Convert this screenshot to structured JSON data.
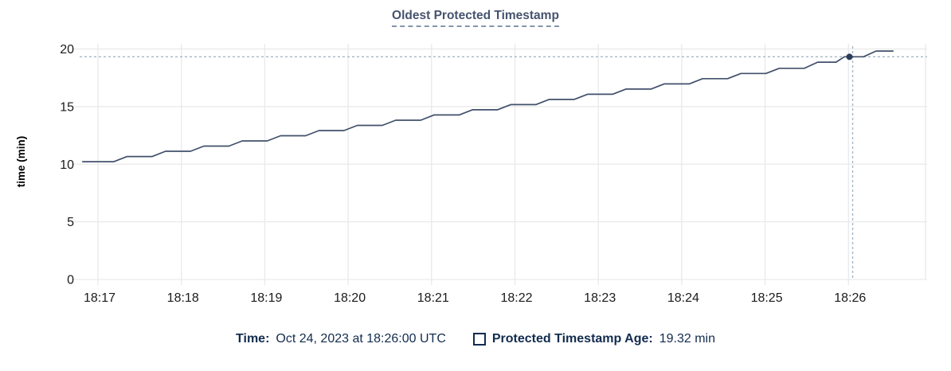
{
  "title": "Oldest Protected Timestamp",
  "chart_data": {
    "type": "line",
    "title": "Oldest Protected Timestamp",
    "xlabel": "",
    "ylabel": "time (min)",
    "ylim": [
      0,
      20
    ],
    "y_ticks": [
      0,
      5,
      10,
      15,
      20
    ],
    "x_ticks": [
      {
        "t": 0,
        "label": "18:17"
      },
      {
        "t": 1,
        "label": "18:18"
      },
      {
        "t": 2,
        "label": "18:19"
      },
      {
        "t": 3,
        "label": "18:20"
      },
      {
        "t": 4,
        "label": "18:21"
      },
      {
        "t": 5,
        "label": "18:22"
      },
      {
        "t": 6,
        "label": "18:23"
      },
      {
        "t": 7,
        "label": "18:24"
      },
      {
        "t": 8,
        "label": "18:25"
      },
      {
        "t": 9,
        "label": "18:26"
      }
    ],
    "x_domain_minutes": [
      -0.32,
      9.94
    ],
    "grid": true,
    "legend_position": "bottom",
    "series": [
      {
        "name": "Protected Timestamp Age",
        "points": [
          [
            -0.19,
            10.22
          ],
          [
            0.19,
            10.22
          ],
          [
            0.35,
            10.67
          ],
          [
            0.65,
            10.67
          ],
          [
            0.81,
            11.12
          ],
          [
            1.11,
            11.12
          ],
          [
            1.27,
            11.57
          ],
          [
            1.57,
            11.57
          ],
          [
            1.73,
            12.02
          ],
          [
            2.03,
            12.02
          ],
          [
            2.19,
            12.47
          ],
          [
            2.49,
            12.47
          ],
          [
            2.65,
            12.92
          ],
          [
            2.95,
            12.92
          ],
          [
            3.11,
            13.37
          ],
          [
            3.41,
            13.37
          ],
          [
            3.57,
            13.82
          ],
          [
            3.87,
            13.82
          ],
          [
            4.03,
            14.27
          ],
          [
            4.33,
            14.27
          ],
          [
            4.49,
            14.72
          ],
          [
            4.79,
            14.72
          ],
          [
            4.95,
            15.17
          ],
          [
            5.25,
            15.17
          ],
          [
            5.41,
            15.62
          ],
          [
            5.71,
            15.62
          ],
          [
            5.87,
            16.07
          ],
          [
            6.17,
            16.07
          ],
          [
            6.33,
            16.52
          ],
          [
            6.63,
            16.52
          ],
          [
            6.79,
            16.97
          ],
          [
            7.09,
            16.97
          ],
          [
            7.25,
            17.42
          ],
          [
            7.55,
            17.42
          ],
          [
            7.71,
            17.87
          ],
          [
            8.01,
            17.87
          ],
          [
            8.17,
            18.32
          ],
          [
            8.47,
            18.32
          ],
          [
            8.63,
            18.85
          ],
          [
            8.85,
            18.85
          ],
          [
            8.95,
            19.32
          ],
          [
            9.18,
            19.32
          ],
          [
            9.33,
            19.82
          ],
          [
            9.54,
            19.82
          ]
        ]
      }
    ],
    "hover": {
      "t": 9.05,
      "value": 19.32,
      "time_label": "Oct 24, 2023 at 18:26:00 UTC"
    }
  },
  "legend": {
    "time_label": "Time:",
    "time_value": "Oct 24, 2023 at 18:26:00 UTC",
    "series_label": "Protected Timestamp Age:",
    "series_value": "19.32 min"
  },
  "colors": {
    "line": "#41506B",
    "hover_dot": "#2C3D5A",
    "crosshair": "#A4B7C6",
    "grid": "#E9E9E9",
    "tick_text": "#1B1B1B",
    "axis_label_text": "#000000",
    "title_text": "#46536E",
    "title_underline": "#8494AC",
    "legend_text": "#132C4E"
  }
}
